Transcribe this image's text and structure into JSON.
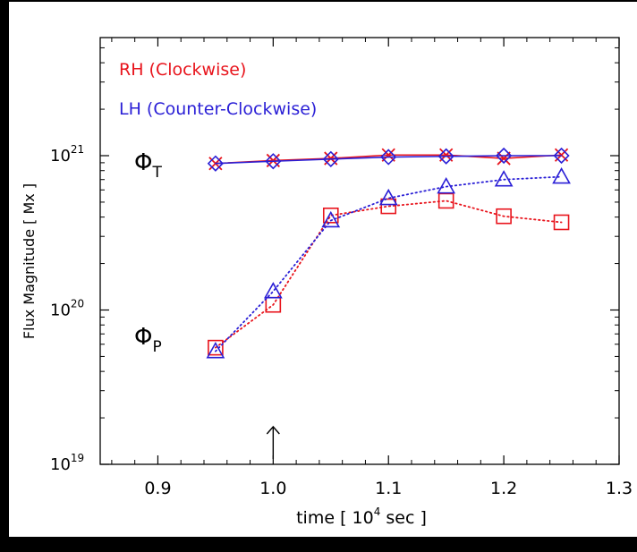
{
  "colors": {
    "background": "#ffffff",
    "frame": "#000000",
    "rh": "#e8141c",
    "lh": "#2a1fd6",
    "axis": "#000000"
  },
  "chart_data": {
    "type": "line",
    "xlabel": "time [ 10⁴ sec ]",
    "ylabel": "Flux Magnitude [ Mx ]",
    "xlim": [
      0.85,
      1.3
    ],
    "ylim": [
      1e+19,
      1e+21
    ],
    "yscale": "log",
    "x_ticks": [
      0.9,
      1.0,
      1.1,
      1.2,
      1.3
    ],
    "x_tick_labels": [
      "0.9",
      "1.0",
      "1.1",
      "1.2",
      "1.3"
    ],
    "y_ticks": [
      1e+19,
      1e+20,
      1e+21
    ],
    "y_tick_labels": [
      {
        "base": "10",
        "exp": "19"
      },
      {
        "base": "10",
        "exp": "20"
      },
      {
        "base": "10",
        "exp": "21"
      }
    ],
    "legend": {
      "placement": "top-left",
      "entries": [
        "RH (Clockwise)",
        "LH (Counter-Clockwise)"
      ]
    },
    "annotations": {
      "phi_t": {
        "symbol": "Φ",
        "sub": "T"
      },
      "phi_p": {
        "symbol": "Φ",
        "sub": "P"
      },
      "arrow_x": 1.0
    },
    "x": [
      0.95,
      1.0,
      1.05,
      1.1,
      1.15,
      1.2,
      1.25
    ],
    "series": [
      {
        "name": "RH (Clockwise)",
        "quantity": "Φ_T",
        "marker": "x",
        "line": "solid",
        "color_key": "rh",
        "values": [
          8.9e+20,
          9.3e+20,
          9.6e+20,
          1.01e+21,
          1.01e+21,
          9.6e+20,
          1.01e+21
        ]
      },
      {
        "name": "LH (Counter-Clockwise)",
        "quantity": "Φ_T",
        "marker": "diamond",
        "line": "solid",
        "color_key": "lh",
        "values": [
          8.9e+20,
          9.2e+20,
          9.5e+20,
          9.8e+20,
          9.9e+20,
          1e+21,
          1e+21
        ]
      },
      {
        "name": "RH (Clockwise)",
        "quantity": "Φ_P",
        "marker": "square",
        "line": "dotted",
        "color_key": "rh",
        "values": [
          5.7e+19,
          1.08e+20,
          4.1e+20,
          4.7e+20,
          5.1e+20,
          4.05e+20,
          3.7e+20
        ]
      },
      {
        "name": "LH (Counter-Clockwise)",
        "quantity": "Φ_P",
        "marker": "triangle",
        "line": "dotted",
        "color_key": "lh",
        "values": [
          5.4e+19,
          1.32e+20,
          3.8e+20,
          5.3e+20,
          6.3e+20,
          7e+20,
          7.3e+20
        ]
      }
    ]
  }
}
